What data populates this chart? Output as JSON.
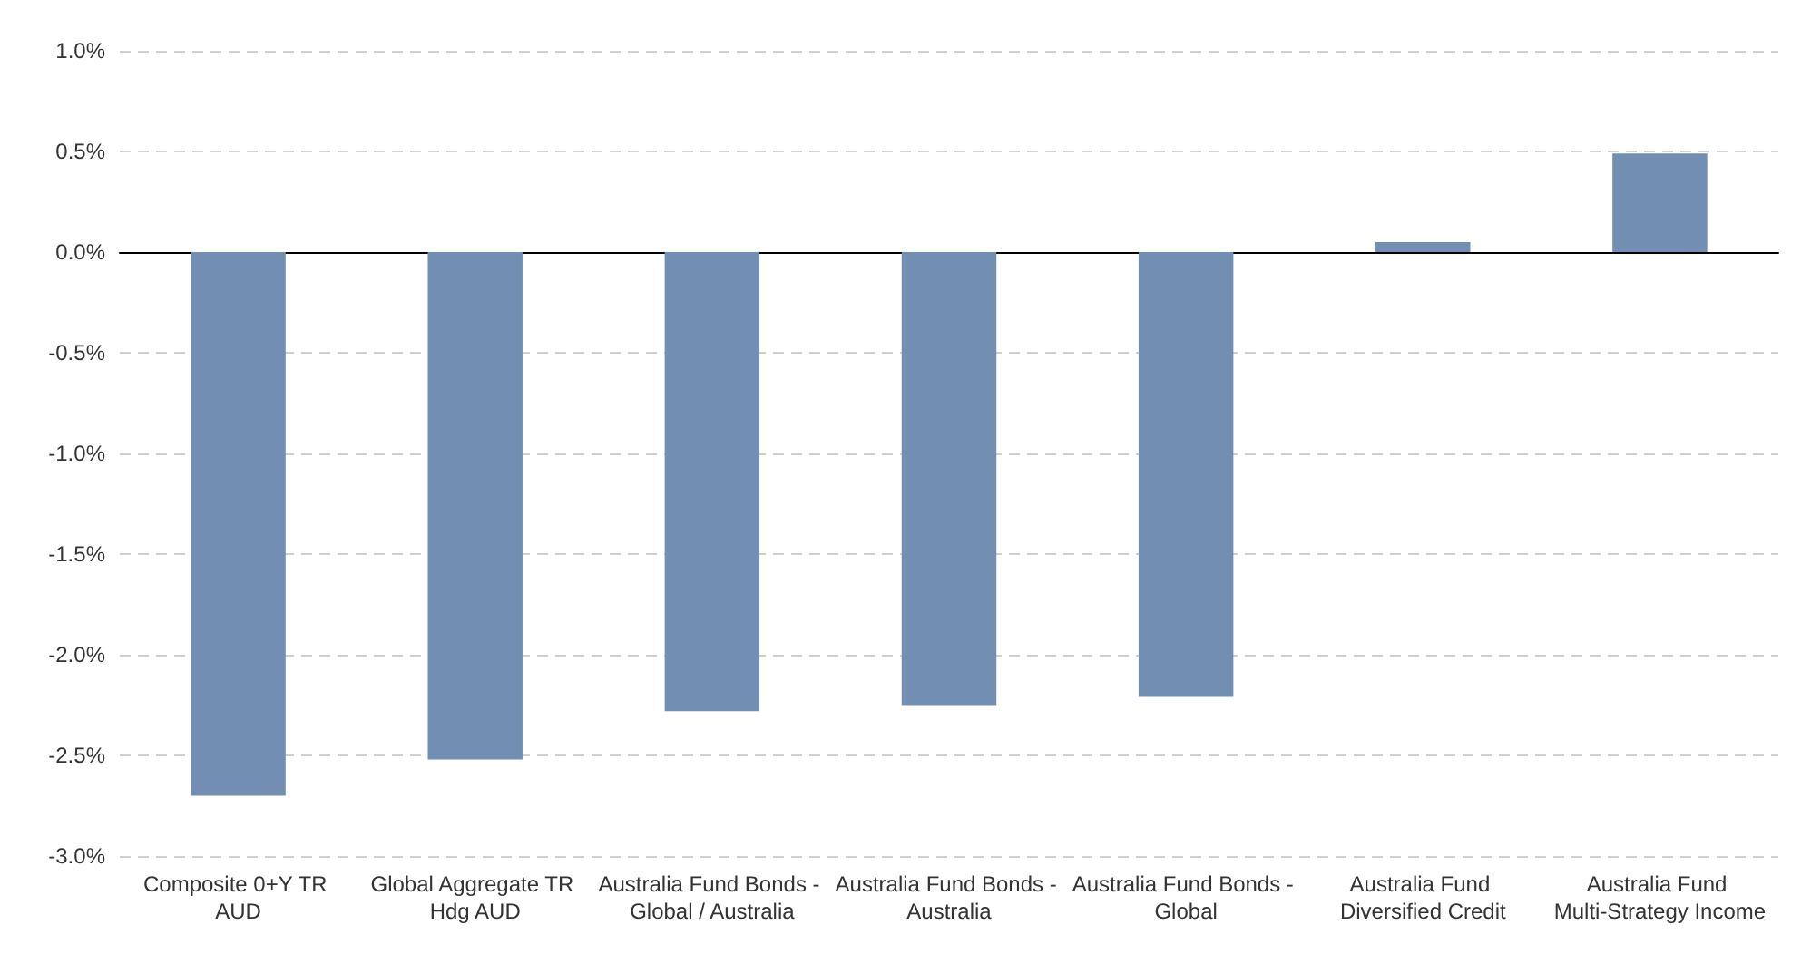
{
  "chart_data": {
    "type": "bar",
    "categories": [
      "Composite 0+Y TR AUD",
      "Global Aggregate TR Hdg AUD",
      "Australia Fund Bonds - Global / Australia",
      "Australia Fund Bonds - Australia",
      "Australia Fund Bonds - Global",
      "Australia Fund Diversified Credit",
      "Australia Fund Multi-Strategy Income"
    ],
    "values": [
      -2.7,
      -2.52,
      -2.28,
      -2.25,
      -2.21,
      0.05,
      0.49
    ],
    "color": "#728fb3",
    "ylim": [
      -3,
      1
    ],
    "yticks": [
      {
        "value": -3,
        "label": "-3.0%"
      },
      {
        "value": -2.5,
        "label": "-2.5%"
      },
      {
        "value": -2,
        "label": "-2.0%"
      },
      {
        "value": -1.5,
        "label": "-1.5%"
      },
      {
        "value": -1,
        "label": "-1.0%"
      },
      {
        "value": -0.5,
        "label": "-0.5%"
      },
      {
        "value": 0,
        "label": "0.0%"
      },
      {
        "value": 0.5,
        "label": "0.5%"
      },
      {
        "value": 1,
        "label": "1.0%"
      }
    ],
    "grid": "y"
  }
}
